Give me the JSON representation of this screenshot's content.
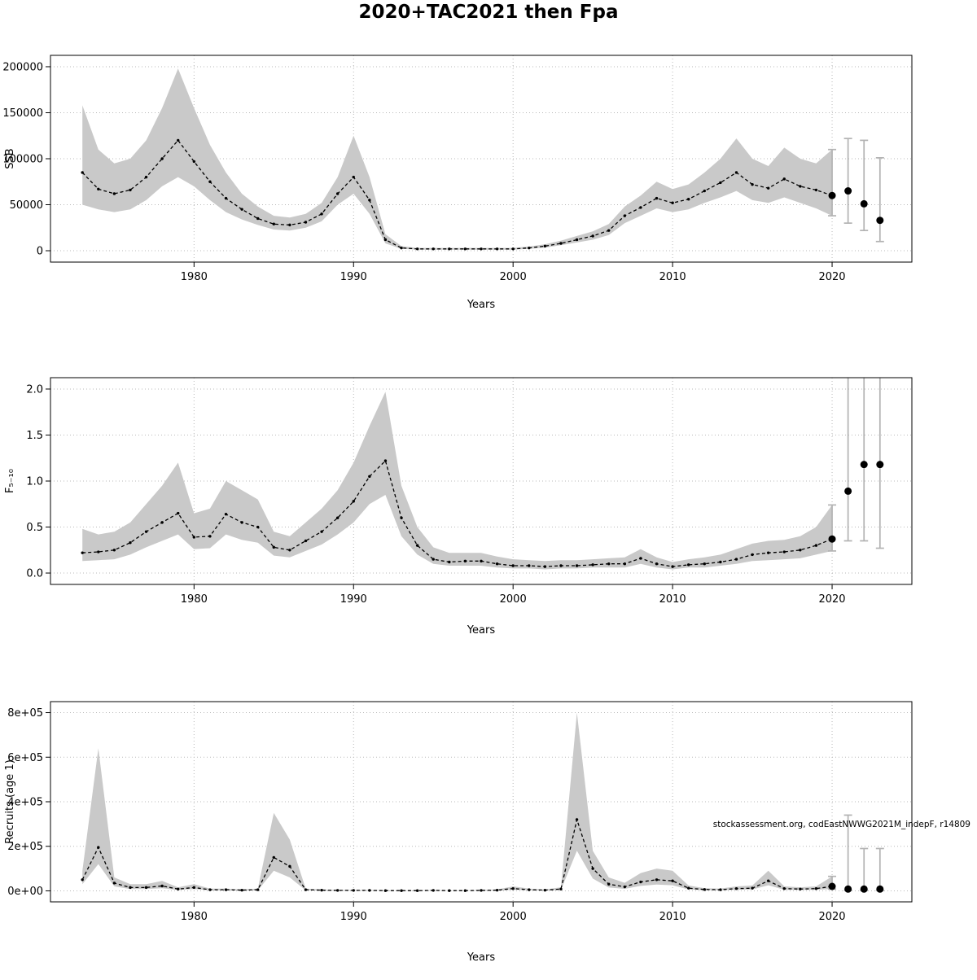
{
  "title": "2020+TAC2021 then Fpa",
  "colors": {
    "band": "#c9c9c9",
    "line": "#000000",
    "errorbar": "#b3b3b3",
    "grid": "#b8b8b8",
    "box": "#000000"
  },
  "chart_data": [
    {
      "type": "line",
      "title": "",
      "xlabel": "Years",
      "ylabel": "SSB",
      "xlim": [
        1971,
        2025
      ],
      "ylim": [
        0,
        200000
      ],
      "xticks": [
        1980,
        1990,
        2000,
        2010,
        2020
      ],
      "xtick_labels": [
        "1980",
        "1990",
        "2000",
        "2010",
        "2020"
      ],
      "yticks": [
        0,
        50000,
        100000,
        150000,
        200000
      ],
      "ytick_labels": [
        "0",
        "50000",
        "100000",
        "150000",
        "200000"
      ],
      "legend": "none",
      "grid": true,
      "years": [
        1973,
        1974,
        1975,
        1976,
        1977,
        1978,
        1979,
        1980,
        1981,
        1982,
        1983,
        1984,
        1985,
        1986,
        1987,
        1988,
        1989,
        1990,
        1991,
        1992,
        1993,
        1994,
        1995,
        1996,
        1997,
        1998,
        1999,
        2000,
        2001,
        2002,
        2003,
        2004,
        2005,
        2006,
        2007,
        2008,
        2009,
        2010,
        2011,
        2012,
        2013,
        2014,
        2015,
        2016,
        2017,
        2018,
        2019,
        2020
      ],
      "mean": [
        85000,
        67000,
        62000,
        66000,
        80000,
        100000,
        120000,
        97000,
        75000,
        57000,
        45000,
        35000,
        29000,
        28000,
        31000,
        40000,
        62000,
        80000,
        55000,
        12000,
        3000,
        2000,
        2000,
        2000,
        2000,
        2000,
        2000,
        2000,
        3000,
        5000,
        8000,
        12000,
        16000,
        22000,
        38000,
        47000,
        57000,
        52000,
        56000,
        65000,
        74000,
        85000,
        72000,
        68000,
        78000,
        70000,
        66000,
        60000
      ],
      "lower": [
        50000,
        45000,
        42000,
        45000,
        55000,
        70000,
        80000,
        70000,
        55000,
        42000,
        34000,
        28000,
        23000,
        22000,
        25000,
        32000,
        50000,
        62000,
        40000,
        8000,
        2000,
        1200,
        1200,
        1200,
        1200,
        1200,
        1200,
        1200,
        2000,
        3500,
        6000,
        9000,
        12000,
        17000,
        30000,
        38000,
        46000,
        42000,
        45000,
        52000,
        58000,
        65000,
        55000,
        52000,
        58000,
        52000,
        46000,
        38000
      ],
      "upper": [
        158000,
        110000,
        95000,
        100000,
        120000,
        155000,
        198000,
        155000,
        115000,
        85000,
        62000,
        48000,
        38000,
        36000,
        40000,
        52000,
        80000,
        125000,
        80000,
        18000,
        5000,
        3000,
        3000,
        3000,
        3000,
        3000,
        3000,
        3000,
        4500,
        7000,
        11000,
        16000,
        21000,
        29000,
        48000,
        60000,
        75000,
        67000,
        72000,
        85000,
        100000,
        122000,
        100000,
        92000,
        112000,
        100000,
        95000,
        110000
      ],
      "forecast": {
        "years": [
          2020,
          2021,
          2022,
          2023
        ],
        "values": [
          60000,
          65000,
          51000,
          33000
        ],
        "lower": [
          38000,
          30000,
          22000,
          10000
        ],
        "upper": [
          110000,
          122000,
          120000,
          101000
        ]
      }
    },
    {
      "type": "line",
      "title": "",
      "xlabel": "Years",
      "ylabel": "F₅₋₁₀",
      "xlim": [
        1971,
        2025
      ],
      "ylim": [
        0,
        2.0
      ],
      "xticks": [
        1980,
        1990,
        2000,
        2010,
        2020
      ],
      "xtick_labels": [
        "1980",
        "1990",
        "2000",
        "2010",
        "2020"
      ],
      "yticks": [
        0.0,
        0.5,
        1.0,
        1.5,
        2.0
      ],
      "ytick_labels": [
        "0.0",
        "0.5",
        "1.0",
        "1.5",
        "2.0"
      ],
      "legend": "none",
      "grid": true,
      "years": [
        1973,
        1974,
        1975,
        1976,
        1977,
        1978,
        1979,
        1980,
        1981,
        1982,
        1983,
        1984,
        1985,
        1986,
        1987,
        1988,
        1989,
        1990,
        1991,
        1992,
        1993,
        1994,
        1995,
        1996,
        1997,
        1998,
        1999,
        2000,
        2001,
        2002,
        2003,
        2004,
        2005,
        2006,
        2007,
        2008,
        2009,
        2010,
        2011,
        2012,
        2013,
        2014,
        2015,
        2016,
        2017,
        2018,
        2019,
        2020
      ],
      "mean": [
        0.22,
        0.23,
        0.25,
        0.33,
        0.45,
        0.55,
        0.65,
        0.39,
        0.4,
        0.64,
        0.55,
        0.5,
        0.28,
        0.25,
        0.35,
        0.45,
        0.6,
        0.78,
        1.05,
        1.22,
        0.6,
        0.3,
        0.15,
        0.12,
        0.13,
        0.13,
        0.1,
        0.08,
        0.08,
        0.07,
        0.08,
        0.08,
        0.09,
        0.1,
        0.1,
        0.16,
        0.1,
        0.07,
        0.09,
        0.1,
        0.12,
        0.15,
        0.2,
        0.22,
        0.23,
        0.25,
        0.3,
        0.37
      ],
      "lower": [
        0.13,
        0.14,
        0.15,
        0.2,
        0.28,
        0.35,
        0.42,
        0.26,
        0.27,
        0.42,
        0.36,
        0.33,
        0.19,
        0.17,
        0.24,
        0.31,
        0.42,
        0.55,
        0.75,
        0.85,
        0.4,
        0.2,
        0.1,
        0.08,
        0.08,
        0.08,
        0.06,
        0.05,
        0.05,
        0.04,
        0.05,
        0.05,
        0.06,
        0.06,
        0.06,
        0.1,
        0.06,
        0.04,
        0.06,
        0.06,
        0.08,
        0.1,
        0.13,
        0.14,
        0.15,
        0.16,
        0.2,
        0.24
      ],
      "upper": [
        0.48,
        0.42,
        0.45,
        0.55,
        0.75,
        0.95,
        1.2,
        0.65,
        0.7,
        1.0,
        0.9,
        0.8,
        0.45,
        0.4,
        0.55,
        0.7,
        0.9,
        1.2,
        1.6,
        1.97,
        0.95,
        0.5,
        0.28,
        0.22,
        0.22,
        0.22,
        0.18,
        0.15,
        0.14,
        0.13,
        0.14,
        0.14,
        0.15,
        0.16,
        0.17,
        0.26,
        0.17,
        0.12,
        0.15,
        0.17,
        0.2,
        0.26,
        0.32,
        0.35,
        0.36,
        0.4,
        0.5,
        0.74
      ],
      "forecast": {
        "years": [
          2020,
          2021,
          2022,
          2023
        ],
        "values": [
          0.37,
          0.89,
          1.18,
          1.18
        ],
        "lower": [
          0.24,
          0.35,
          0.35,
          0.27
        ],
        "upper": [
          0.74,
          2.15,
          2.2,
          2.2
        ]
      }
    },
    {
      "type": "line",
      "title": "",
      "xlabel": "Years",
      "ylabel": "Recruits (age 1)",
      "xlim": [
        1971,
        2025
      ],
      "ylim": [
        0,
        800000
      ],
      "xticks": [
        1980,
        1990,
        2000,
        2010,
        2020
      ],
      "xtick_labels": [
        "1980",
        "1990",
        "2000",
        "2010",
        "2020"
      ],
      "yticks": [
        0,
        200000,
        400000,
        600000,
        800000
      ],
      "ytick_labels": [
        "0e+00",
        "2e+05",
        "4e+05",
        "6e+05",
        "8e+05"
      ],
      "legend": "none",
      "grid": true,
      "annotation": "stockassessment.org, codEastNWWG2021M_indepF, r14809",
      "years": [
        1973,
        1974,
        1975,
        1976,
        1977,
        1978,
        1979,
        1980,
        1981,
        1982,
        1983,
        1984,
        1985,
        1986,
        1987,
        1988,
        1989,
        1990,
        1991,
        1992,
        1993,
        1994,
        1995,
        1996,
        1997,
        1998,
        1999,
        2000,
        2001,
        2002,
        2003,
        2004,
        2005,
        2006,
        2007,
        2008,
        2009,
        2010,
        2011,
        2012,
        2013,
        2014,
        2015,
        2016,
        2017,
        2018,
        2019,
        2020
      ],
      "mean": [
        50000,
        195000,
        35000,
        15000,
        15000,
        22000,
        8000,
        15000,
        5000,
        5000,
        3000,
        5000,
        150000,
        110000,
        5000,
        3000,
        2000,
        2000,
        2000,
        1000,
        1000,
        1000,
        2000,
        1000,
        1000,
        2000,
        3000,
        10000,
        5000,
        3000,
        8000,
        320000,
        100000,
        30000,
        18000,
        40000,
        50000,
        45000,
        12000,
        6000,
        5000,
        10000,
        12000,
        45000,
        10000,
        8000,
        10000,
        20000
      ],
      "lower": [
        30000,
        120000,
        20000,
        8000,
        8000,
        12000,
        4000,
        8000,
        2000,
        2000,
        1500,
        2000,
        90000,
        60000,
        2000,
        1500,
        1000,
        1000,
        1000,
        500,
        500,
        500,
        1000,
        500,
        500,
        1000,
        1500,
        5000,
        2500,
        1500,
        4000,
        180000,
        55000,
        15000,
        9000,
        22000,
        28000,
        25000,
        6000,
        3000,
        2500,
        5000,
        6000,
        25000,
        5000,
        4000,
        5000,
        8000
      ],
      "upper": [
        90000,
        640000,
        60000,
        30000,
        30000,
        45000,
        16000,
        30000,
        10000,
        10000,
        6000,
        10000,
        350000,
        230000,
        10000,
        6000,
        4000,
        4000,
        4000,
        2000,
        2000,
        2000,
        4000,
        2000,
        2000,
        4000,
        6000,
        20000,
        10000,
        6000,
        16000,
        800000,
        180000,
        60000,
        36000,
        80000,
        100000,
        90000,
        24000,
        12000,
        10000,
        20000,
        24000,
        90000,
        20000,
        16000,
        20000,
        65000
      ],
      "forecast": {
        "years": [
          2020,
          2021,
          2022,
          2023
        ],
        "values": [
          20000,
          8000,
          8000,
          8000
        ],
        "lower": [
          8000,
          2000,
          2000,
          2000
        ],
        "upper": [
          65000,
          340000,
          190000,
          190000
        ]
      }
    }
  ]
}
